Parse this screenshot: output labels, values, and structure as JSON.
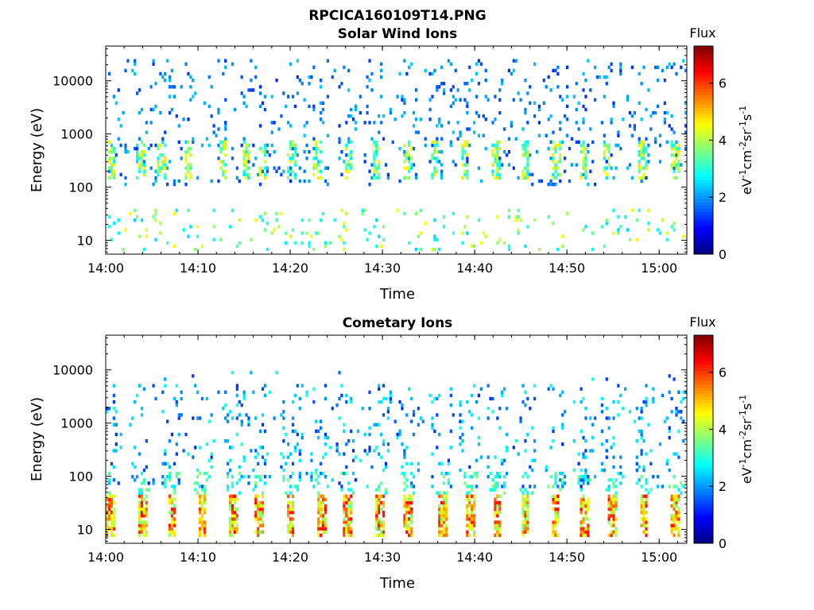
{
  "figure": {
    "title": "RPCICA160109T14.PNG",
    "colorbar_title": "Flux",
    "colorbar_label": "eV-1cm-2sr-1s-1",
    "colorbar_ticks": [
      "0",
      "2",
      "4",
      "6"
    ],
    "colormap": "jet"
  },
  "chart_data": [
    {
      "type": "heatmap",
      "title": "Solar Wind Ions",
      "xlabel": "Time",
      "ylabel": "Energy (eV)",
      "x_range": [
        "14:00",
        "15:03"
      ],
      "x_ticks": [
        "14:00",
        "14:10",
        "14:20",
        "14:30",
        "14:40",
        "14:50",
        "15:00"
      ],
      "y_scale": "log",
      "y_range": [
        5.5,
        45000
      ],
      "y_ticks": [
        "10",
        "100",
        "1000",
        "10000"
      ],
      "z_range": [
        0,
        7.3
      ],
      "grid": false,
      "bursts_min": [
        0.6,
        3.8,
        6.1,
        8.9,
        12.7,
        15.2,
        17.0,
        20.1,
        23.0,
        26.3,
        29.4,
        32.7,
        35.7,
        38.9,
        42.3,
        45.5,
        48.9,
        51.8,
        54.3,
        58.2,
        61.8
      ],
      "burst_energy_range_eV": [
        150,
        800
      ],
      "burst_flux_range": [
        2.5,
        4.8
      ],
      "sparse_energy_range_eV": [
        100,
        25000
      ],
      "sparse_flux_range": [
        1.2,
        2.4
      ],
      "low_energy_range_eV": [
        6,
        40
      ],
      "low_energy_flux_range": [
        2.4,
        4.6
      ]
    },
    {
      "type": "heatmap",
      "title": "Cometary Ions",
      "xlabel": "Time",
      "ylabel": "Energy (eV)",
      "x_range": [
        "14:00",
        "15:03"
      ],
      "x_ticks": [
        "14:00",
        "14:10",
        "14:20",
        "14:30",
        "14:40",
        "14:50",
        "15:00"
      ],
      "y_scale": "log",
      "y_range": [
        5.5,
        45000
      ],
      "y_ticks": [
        "10",
        "100",
        "1000",
        "10000"
      ],
      "z_range": [
        0,
        7.3
      ],
      "grid": false,
      "bursts_min": [
        0.5,
        4.0,
        7.2,
        10.5,
        13.8,
        16.6,
        20.0,
        23.4,
        26.2,
        29.7,
        32.8,
        36.5,
        39.5,
        42.5,
        45.5,
        48.8,
        51.9,
        55.0,
        58.3,
        61.7
      ],
      "burst_energy_range_eV": [
        7,
        45
      ],
      "burst_flux_range": [
        3.5,
        6.4
      ],
      "sparse_energy_range_eV": [
        60,
        9000
      ],
      "sparse_flux_range": [
        1.2,
        3.0
      ]
    }
  ]
}
